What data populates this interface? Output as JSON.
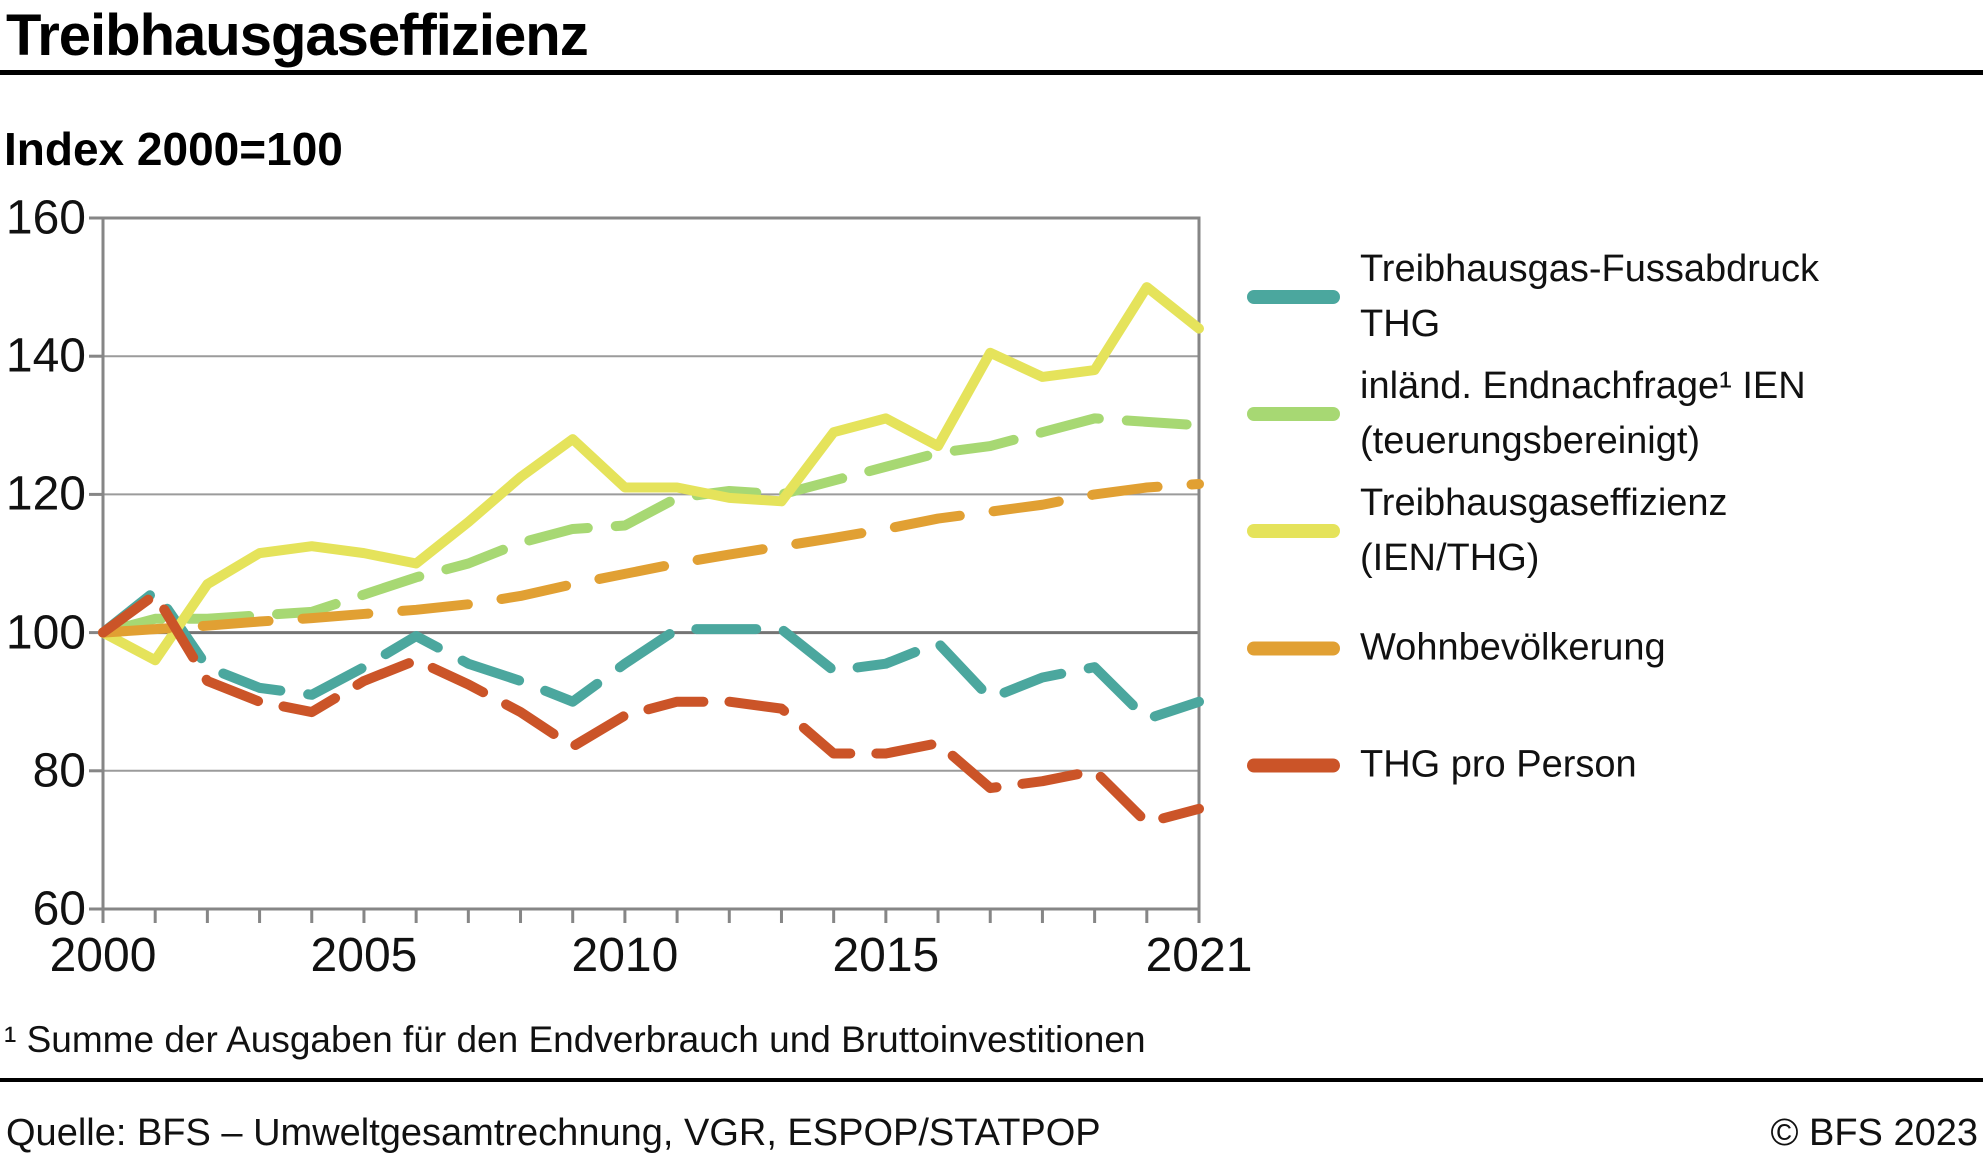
{
  "header": {
    "title": "Treibhausgaseffizienz",
    "subtitle": "Index 2000=100"
  },
  "footnote": "¹ Summe der Ausgaben für den Endverbrauch und Bruttoinvestitionen",
  "footer": {
    "source": "Quelle: BFS – Umweltgesamtrechnung, VGR, ESPOP/STATPOP",
    "copyright": "© BFS 2023"
  },
  "colors": {
    "thg": "#4BA79E",
    "ien": "#A7D873",
    "eff": "#E5E35B",
    "pop": "#E1A033",
    "pp": "#CB5428",
    "grid": "#9B9B9B",
    "grid_base": "#747474",
    "axis": "#868686"
  },
  "chart_data": {
    "type": "line",
    "title": "Treibhausgaseffizienz",
    "subtitle": "Index 2000=100",
    "xlabel": "",
    "ylabel": "Index 2000=100",
    "x": [
      2000,
      2001,
      2002,
      2003,
      2004,
      2005,
      2006,
      2007,
      2008,
      2009,
      2010,
      2011,
      2012,
      2013,
      2014,
      2015,
      2016,
      2017,
      2018,
      2019,
      2020,
      2021
    ],
    "x_labeled_ticks": [
      2000,
      2005,
      2010,
      2015,
      2021
    ],
    "ylim": [
      60,
      160
    ],
    "yticks": [
      60,
      80,
      100,
      120,
      140,
      160
    ],
    "grid": "horizontal",
    "baseline": 100,
    "legend_position": "right",
    "series": [
      {
        "id": "thg",
        "name": "Treibhausgas-Fussabdruck THG",
        "legend_lines": [
          "Treibhausgas-Fussabdruck",
          "THG"
        ],
        "color": "#4BA79E",
        "style": "dashed",
        "values": [
          100,
          106,
          95,
          92,
          91,
          95,
          99.5,
          95.5,
          93,
          90,
          95.5,
          100.5,
          100.5,
          100.5,
          94.5,
          95.5,
          98.5,
          90.5,
          93.5,
          95,
          87.5,
          90
        ]
      },
      {
        "id": "ien",
        "name": "inländ. Endnachfrage¹ IEN (teuerungsbereinigt)",
        "legend_lines": [
          "inländ. Endnachfrage¹ IEN",
          "(teuerungsbereinigt)"
        ],
        "color": "#A7D873",
        "style": "dashed",
        "values": [
          100,
          102,
          102,
          102.5,
          103,
          105.5,
          108,
          110,
          113,
          115,
          115.5,
          119.5,
          120.5,
          120,
          122,
          124,
          126,
          127,
          129,
          131,
          130.5,
          130
        ]
      },
      {
        "id": "eff",
        "name": "Treibhausgaseffizienz (IEN/THG)",
        "legend_lines": [
          "Treibhausgaseffizienz",
          "(IEN/THG)"
        ],
        "color": "#E5E35B",
        "style": "solid",
        "values": [
          100,
          96,
          107,
          111.5,
          112.5,
          111.5,
          110,
          116,
          122.5,
          128,
          121,
          121,
          119.5,
          119,
          129,
          131,
          127,
          140.5,
          137,
          138,
          150,
          144
        ]
      },
      {
        "id": "pop",
        "name": "Wohnbevölkerung",
        "legend_lines": [
          "Wohnbevölkerung"
        ],
        "color": "#E1A033",
        "style": "dashed",
        "values": [
          100,
          100.5,
          101,
          101.6,
          102.1,
          102.7,
          103.3,
          104.1,
          105.3,
          107,
          108.5,
          110,
          111.3,
          112.5,
          113.7,
          115,
          116.5,
          117.5,
          118.5,
          120,
          121,
          121.5
        ]
      },
      {
        "id": "pp",
        "name": "THG pro Person",
        "legend_lines": [
          "THG pro Person"
        ],
        "color": "#CB5428",
        "style": "dashed",
        "values": [
          100,
          105.5,
          93,
          90,
          88.5,
          93,
          96,
          92.5,
          88.5,
          83.5,
          88,
          90,
          90,
          89,
          82.5,
          82.5,
          84,
          77.5,
          78.5,
          80,
          72.5,
          74.5
        ]
      }
    ]
  }
}
